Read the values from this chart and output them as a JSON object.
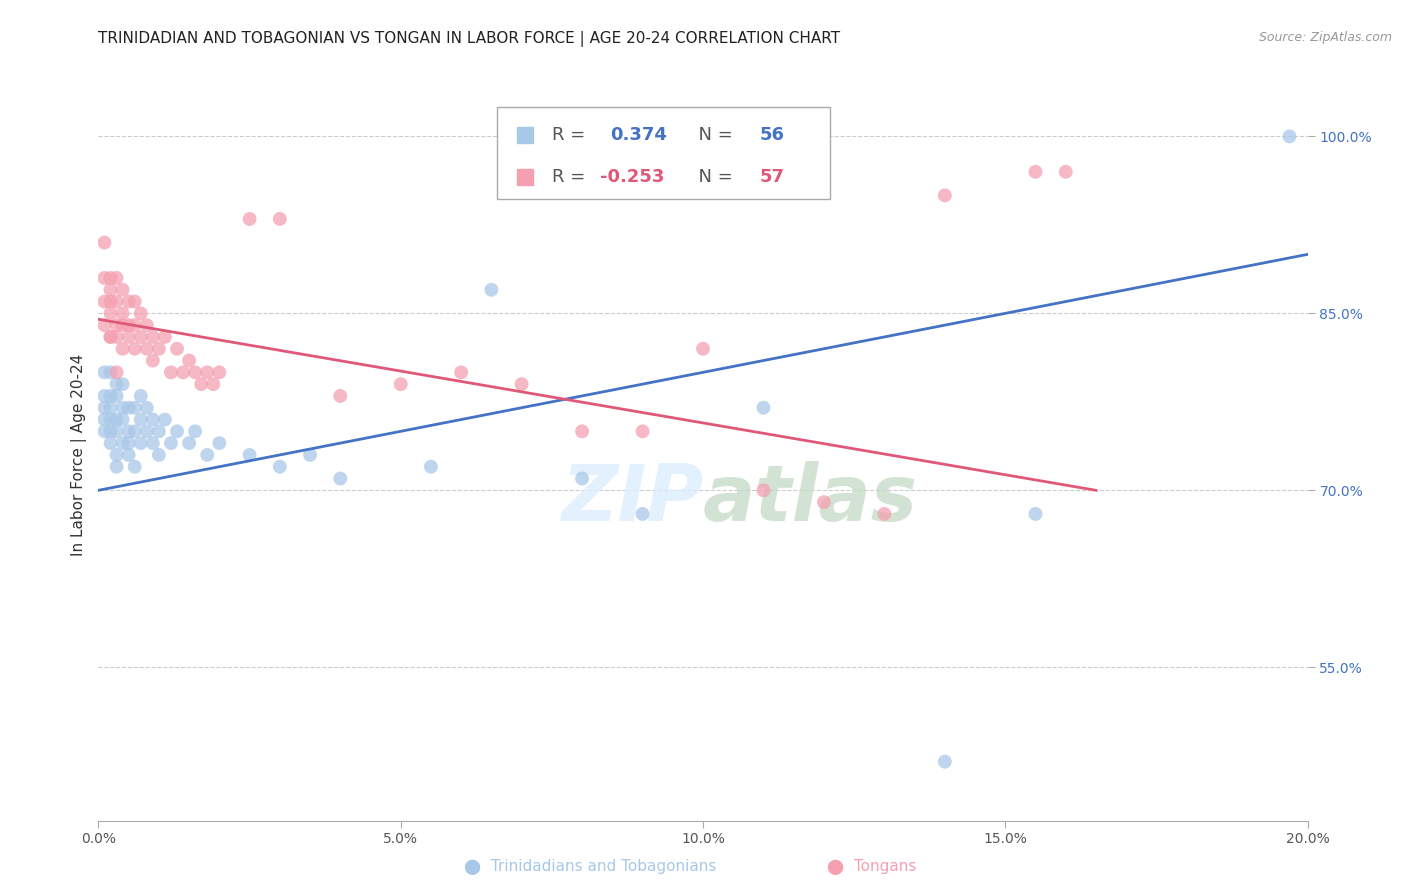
{
  "title": "TRINIDADIAN AND TOBAGONIAN VS TONGAN IN LABOR FORCE | AGE 20-24 CORRELATION CHART",
  "source_text": "Source: ZipAtlas.com",
  "ylabel": "In Labor Force | Age 20-24",
  "legend_blue_label": "Trinidadians and Tobagonians",
  "legend_pink_label": "Tongans",
  "xlim": [
    0.0,
    0.2
  ],
  "ylim": [
    0.42,
    1.04
  ],
  "yticks": [
    0.55,
    0.7,
    0.85,
    1.0
  ],
  "ytick_labels": [
    "55.0%",
    "70.0%",
    "85.0%",
    "100.0%"
  ],
  "xticks": [
    0.0,
    0.05,
    0.1,
    0.15,
    0.2
  ],
  "xtick_labels": [
    "0.0%",
    "5.0%",
    "10.0%",
    "15.0%",
    "20.0%"
  ],
  "grid_color": "#cccccc",
  "blue_color": "#a8c8e8",
  "pink_color": "#f4a0b0",
  "blue_line_color": "#4472c4",
  "pink_line_color": "#e05878",
  "watermark_color": "#ddeeff",
  "blue_x": [
    0.001,
    0.001,
    0.001,
    0.001,
    0.001,
    0.002,
    0.002,
    0.002,
    0.002,
    0.002,
    0.002,
    0.003,
    0.003,
    0.003,
    0.003,
    0.003,
    0.003,
    0.004,
    0.004,
    0.004,
    0.004,
    0.005,
    0.005,
    0.005,
    0.005,
    0.006,
    0.006,
    0.006,
    0.007,
    0.007,
    0.007,
    0.008,
    0.008,
    0.009,
    0.009,
    0.01,
    0.01,
    0.011,
    0.012,
    0.013,
    0.015,
    0.016,
    0.018,
    0.02,
    0.025,
    0.03,
    0.035,
    0.04,
    0.055,
    0.065,
    0.08,
    0.09,
    0.11,
    0.14,
    0.155,
    0.197
  ],
  "blue_y": [
    0.77,
    0.78,
    0.8,
    0.76,
    0.75,
    0.74,
    0.76,
    0.78,
    0.8,
    0.77,
    0.75,
    0.73,
    0.76,
    0.78,
    0.79,
    0.75,
    0.72,
    0.74,
    0.77,
    0.79,
    0.76,
    0.73,
    0.75,
    0.77,
    0.74,
    0.72,
    0.75,
    0.77,
    0.74,
    0.76,
    0.78,
    0.75,
    0.77,
    0.74,
    0.76,
    0.73,
    0.75,
    0.76,
    0.74,
    0.75,
    0.74,
    0.75,
    0.73,
    0.74,
    0.73,
    0.72,
    0.73,
    0.71,
    0.72,
    0.87,
    0.71,
    0.68,
    0.77,
    0.47,
    0.68,
    1.0
  ],
  "pink_x": [
    0.001,
    0.001,
    0.001,
    0.001,
    0.002,
    0.002,
    0.002,
    0.002,
    0.002,
    0.002,
    0.003,
    0.003,
    0.003,
    0.003,
    0.003,
    0.004,
    0.004,
    0.004,
    0.004,
    0.005,
    0.005,
    0.005,
    0.006,
    0.006,
    0.006,
    0.007,
    0.007,
    0.008,
    0.008,
    0.009,
    0.009,
    0.01,
    0.011,
    0.012,
    0.013,
    0.014,
    0.015,
    0.016,
    0.017,
    0.018,
    0.019,
    0.02,
    0.025,
    0.03,
    0.04,
    0.05,
    0.06,
    0.07,
    0.08,
    0.09,
    0.1,
    0.11,
    0.12,
    0.13,
    0.14,
    0.155,
    0.16
  ],
  "pink_y": [
    0.84,
    0.86,
    0.88,
    0.91,
    0.83,
    0.86,
    0.88,
    0.85,
    0.83,
    0.87,
    0.84,
    0.86,
    0.88,
    0.83,
    0.8,
    0.85,
    0.87,
    0.84,
    0.82,
    0.84,
    0.86,
    0.83,
    0.82,
    0.84,
    0.86,
    0.83,
    0.85,
    0.82,
    0.84,
    0.81,
    0.83,
    0.82,
    0.83,
    0.8,
    0.82,
    0.8,
    0.81,
    0.8,
    0.79,
    0.8,
    0.79,
    0.8,
    0.93,
    0.93,
    0.78,
    0.79,
    0.8,
    0.79,
    0.75,
    0.75,
    0.82,
    0.7,
    0.69,
    0.68,
    0.95,
    0.97,
    0.97
  ],
  "blue_trend_x": [
    0.0,
    0.2
  ],
  "blue_trend_y": [
    0.7,
    0.9
  ],
  "pink_trend_x": [
    0.0,
    0.165
  ],
  "pink_trend_y": [
    0.845,
    0.7
  ],
  "title_fontsize": 11,
  "axis_label_fontsize": 11,
  "tick_fontsize": 10,
  "source_fontsize": 9
}
